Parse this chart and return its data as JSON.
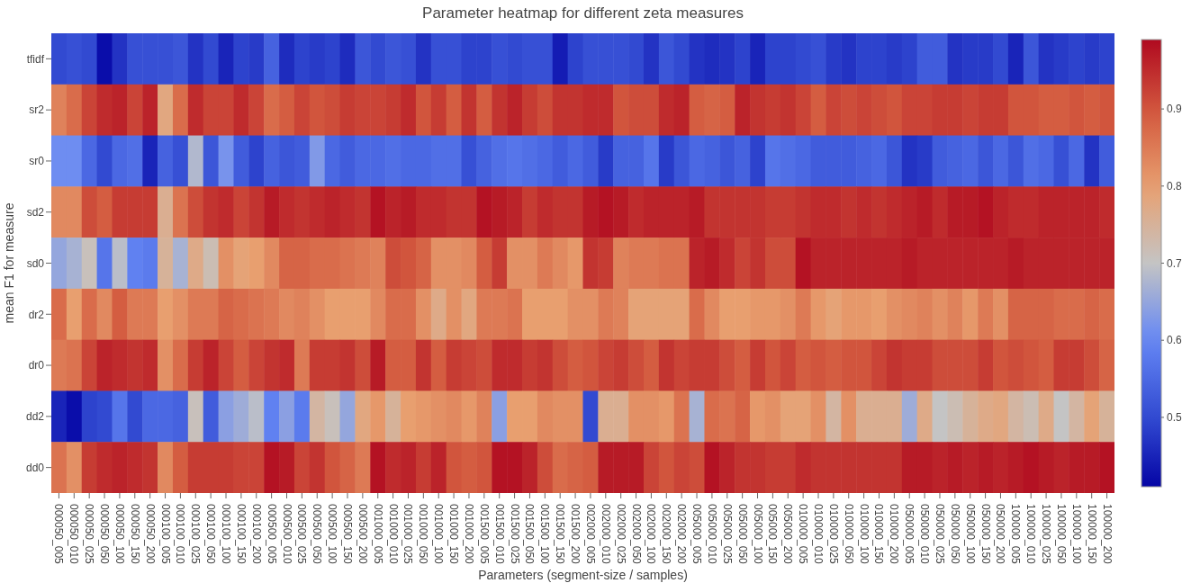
{
  "chart_data": {
    "type": "heatmap",
    "title": "Parameter heatmap for different zeta measures",
    "xlabel": "Parameters (segment-size / samples)",
    "ylabel": "mean F1 for measure",
    "categories": [
      "000050_005",
      "000050_010",
      "000050_025",
      "000050_050",
      "000050_100",
      "000050_150",
      "000050_200",
      "000100_005",
      "000100_010",
      "000100_025",
      "000100_050",
      "000100_100",
      "000100_150",
      "000100_200",
      "000500_005",
      "000500_010",
      "000500_025",
      "000500_050",
      "000500_100",
      "000500_150",
      "000500_200",
      "001000_005",
      "001000_010",
      "001000_025",
      "001000_050",
      "001000_100",
      "001000_150",
      "001000_200",
      "001500_005",
      "001500_010",
      "001500_025",
      "001500_050",
      "001500_100",
      "001500_150",
      "001500_200",
      "002000_005",
      "002000_010",
      "002000_025",
      "002000_050",
      "002000_100",
      "002000_150",
      "002000_200",
      "005000_005",
      "005000_010",
      "005000_025",
      "005000_050",
      "005000_100",
      "005000_150",
      "005000_200",
      "010000_005",
      "010000_010",
      "010000_025",
      "010000_050",
      "010000_100",
      "010000_150",
      "010000_200",
      "050000_005",
      "050000_010",
      "050000_025",
      "050000_050",
      "050000_100",
      "050000_150",
      "050000_200",
      "100000_005",
      "100000_010",
      "100000_025",
      "100000_050",
      "100000_100",
      "100000_150",
      "100000_200"
    ],
    "y_categories": [
      "tfidf",
      "sr2",
      "sr0",
      "sd2",
      "sd0",
      "dr2",
      "dr0",
      "dd2",
      "dd0"
    ],
    "cells": [
      [
        0.5,
        0.51,
        0.5,
        0.42,
        0.47,
        0.51,
        0.51,
        0.51,
        0.52,
        0.47,
        0.5,
        0.45,
        0.49,
        0.48,
        0.54,
        0.46,
        0.49,
        0.48,
        0.49,
        0.46,
        0.52,
        0.5,
        0.52,
        0.51,
        0.47,
        0.51,
        0.51,
        0.49,
        0.49,
        0.51,
        0.5,
        0.51,
        0.51,
        0.44,
        0.49,
        0.51,
        0.51,
        0.51,
        0.5,
        0.47,
        0.52,
        0.5,
        0.47,
        0.46,
        0.47,
        0.49,
        0.45,
        0.49,
        0.49,
        0.5,
        0.51,
        0.48,
        0.47,
        0.49,
        0.49,
        0.48,
        0.49,
        0.53,
        0.53,
        0.47,
        0.48,
        0.48,
        0.5,
        0.45,
        0.52,
        0.47,
        0.48,
        0.49,
        0.48,
        0.49
      ],
      [
        0.84,
        0.87,
        0.92,
        0.95,
        0.96,
        0.92,
        0.96,
        0.78,
        0.87,
        0.95,
        0.92,
        0.92,
        0.95,
        0.92,
        0.87,
        0.89,
        0.92,
        0.9,
        0.91,
        0.93,
        0.92,
        0.92,
        0.93,
        0.95,
        0.9,
        0.93,
        0.89,
        0.94,
        0.89,
        0.94,
        0.96,
        0.93,
        0.91,
        0.94,
        0.94,
        0.95,
        0.95,
        0.9,
        0.91,
        0.91,
        0.95,
        0.96,
        0.89,
        0.88,
        0.89,
        0.96,
        0.94,
        0.93,
        0.94,
        0.92,
        0.89,
        0.92,
        0.91,
        0.92,
        0.91,
        0.9,
        0.92,
        0.92,
        0.93,
        0.93,
        0.92,
        0.93,
        0.93,
        0.9,
        0.9,
        0.89,
        0.89,
        0.9,
        0.89,
        0.9
      ],
      [
        0.61,
        0.61,
        0.55,
        0.5,
        0.55,
        0.56,
        0.45,
        0.54,
        0.51,
        0.68,
        0.52,
        0.62,
        0.53,
        0.49,
        0.54,
        0.52,
        0.53,
        0.63,
        0.55,
        0.53,
        0.55,
        0.55,
        0.56,
        0.55,
        0.55,
        0.56,
        0.56,
        0.51,
        0.54,
        0.56,
        0.57,
        0.56,
        0.55,
        0.53,
        0.55,
        0.53,
        0.48,
        0.54,
        0.54,
        0.57,
        0.48,
        0.52,
        0.55,
        0.54,
        0.52,
        0.54,
        0.49,
        0.57,
        0.56,
        0.55,
        0.53,
        0.53,
        0.53,
        0.54,
        0.55,
        0.52,
        0.47,
        0.48,
        0.53,
        0.54,
        0.55,
        0.52,
        0.55,
        0.52,
        0.56,
        0.55,
        0.51,
        0.55,
        0.47,
        0.53
      ],
      [
        0.83,
        0.83,
        0.91,
        0.89,
        0.93,
        0.93,
        0.93,
        0.76,
        0.86,
        0.91,
        0.94,
        0.95,
        0.92,
        0.94,
        0.97,
        0.95,
        0.94,
        0.95,
        0.96,
        0.95,
        0.94,
        0.98,
        0.96,
        0.97,
        0.95,
        0.95,
        0.94,
        0.94,
        0.98,
        0.97,
        0.96,
        0.93,
        0.95,
        0.94,
        0.94,
        0.97,
        0.98,
        0.97,
        0.95,
        0.96,
        0.96,
        0.96,
        0.97,
        0.94,
        0.94,
        0.94,
        0.94,
        0.93,
        0.93,
        0.94,
        0.95,
        0.95,
        0.94,
        0.95,
        0.94,
        0.95,
        0.96,
        0.97,
        0.95,
        0.97,
        0.97,
        0.98,
        0.96,
        0.95,
        0.95,
        0.96,
        0.96,
        0.96,
        0.96,
        0.95
      ],
      [
        0.65,
        0.67,
        0.71,
        0.57,
        0.69,
        0.59,
        0.58,
        0.75,
        0.67,
        0.77,
        0.72,
        0.82,
        0.79,
        0.8,
        0.83,
        0.88,
        0.88,
        0.87,
        0.87,
        0.86,
        0.85,
        0.84,
        0.91,
        0.9,
        0.88,
        0.82,
        0.82,
        0.83,
        0.89,
        0.93,
        0.82,
        0.82,
        0.85,
        0.83,
        0.81,
        0.94,
        0.93,
        0.84,
        0.85,
        0.85,
        0.86,
        0.86,
        0.96,
        0.97,
        0.95,
        0.92,
        0.94,
        0.91,
        0.91,
        0.98,
        0.96,
        0.96,
        0.96,
        0.96,
        0.96,
        0.96,
        0.97,
        0.96,
        0.96,
        0.96,
        0.96,
        0.96,
        0.96,
        0.97,
        0.96,
        0.96,
        0.96,
        0.96,
        0.96,
        0.96
      ],
      [
        0.87,
        0.8,
        0.87,
        0.83,
        0.89,
        0.85,
        0.85,
        0.8,
        0.82,
        0.85,
        0.85,
        0.88,
        0.87,
        0.86,
        0.85,
        0.83,
        0.84,
        0.82,
        0.8,
        0.8,
        0.8,
        0.83,
        0.87,
        0.87,
        0.82,
        0.77,
        0.82,
        0.78,
        0.85,
        0.85,
        0.86,
        0.8,
        0.8,
        0.8,
        0.82,
        0.82,
        0.85,
        0.84,
        0.79,
        0.79,
        0.79,
        0.79,
        0.87,
        0.83,
        0.8,
        0.8,
        0.81,
        0.81,
        0.82,
        0.85,
        0.81,
        0.79,
        0.81,
        0.81,
        0.8,
        0.82,
        0.83,
        0.84,
        0.82,
        0.84,
        0.81,
        0.85,
        0.82,
        0.88,
        0.88,
        0.88,
        0.87,
        0.87,
        0.88,
        0.87
      ],
      [
        0.85,
        0.86,
        0.92,
        0.96,
        0.95,
        0.94,
        0.95,
        0.82,
        0.87,
        0.93,
        0.96,
        0.92,
        0.89,
        0.92,
        0.94,
        0.95,
        0.85,
        0.93,
        0.93,
        0.94,
        0.91,
        0.97,
        0.89,
        0.89,
        0.94,
        0.89,
        0.93,
        0.92,
        0.91,
        0.95,
        0.95,
        0.93,
        0.94,
        0.91,
        0.89,
        0.9,
        0.92,
        0.93,
        0.91,
        0.89,
        0.94,
        0.92,
        0.93,
        0.93,
        0.91,
        0.89,
        0.93,
        0.9,
        0.92,
        0.89,
        0.9,
        0.89,
        0.9,
        0.9,
        0.92,
        0.94,
        0.93,
        0.93,
        0.91,
        0.91,
        0.91,
        0.93,
        0.9,
        0.91,
        0.9,
        0.89,
        0.93,
        0.93,
        0.91,
        0.88
      ],
      [
        0.45,
        0.42,
        0.49,
        0.5,
        0.57,
        0.5,
        0.55,
        0.55,
        0.54,
        0.71,
        0.53,
        0.64,
        0.66,
        0.69,
        0.59,
        0.64,
        0.58,
        0.74,
        0.71,
        0.65,
        0.78,
        0.81,
        0.75,
        0.8,
        0.81,
        0.82,
        0.83,
        0.81,
        0.84,
        0.64,
        0.8,
        0.8,
        0.83,
        0.82,
        0.82,
        0.5,
        0.76,
        0.76,
        0.82,
        0.82,
        0.81,
        0.86,
        0.67,
        0.87,
        0.86,
        0.88,
        0.81,
        0.82,
        0.79,
        0.79,
        0.82,
        0.74,
        0.82,
        0.76,
        0.76,
        0.76,
        0.66,
        0.77,
        0.7,
        0.72,
        0.75,
        0.77,
        0.78,
        0.74,
        0.72,
        0.77,
        0.7,
        0.74,
        0.79,
        0.75
      ],
      [
        0.86,
        0.82,
        0.93,
        0.95,
        0.96,
        0.95,
        0.94,
        0.83,
        0.89,
        0.93,
        0.93,
        0.93,
        0.92,
        0.92,
        0.98,
        0.97,
        0.92,
        0.94,
        0.9,
        0.88,
        0.85,
        0.98,
        0.95,
        0.96,
        0.93,
        0.96,
        0.9,
        0.89,
        0.9,
        0.98,
        0.98,
        0.96,
        0.91,
        0.87,
        0.88,
        0.89,
        0.97,
        0.97,
        0.97,
        0.92,
        0.9,
        0.92,
        0.91,
        0.98,
        0.96,
        0.94,
        0.94,
        0.93,
        0.93,
        0.95,
        0.94,
        0.94,
        0.94,
        0.94,
        0.94,
        0.94,
        0.97,
        0.97,
        0.96,
        0.97,
        0.96,
        0.97,
        0.96,
        0.97,
        0.98,
        0.97,
        0.96,
        0.97,
        0.97,
        0.98
      ]
    ],
    "clim": [
      0.41,
      0.99
    ],
    "cticks": [
      0.5,
      0.6,
      0.7,
      0.8,
      0.9
    ]
  }
}
